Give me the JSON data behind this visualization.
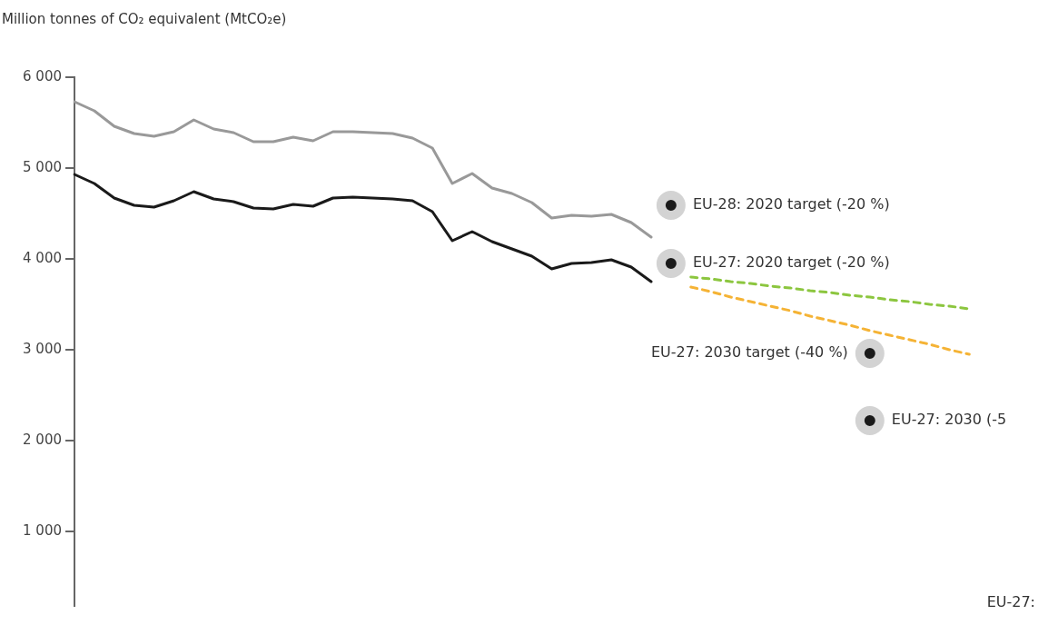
{
  "chart_data": {
    "type": "line",
    "ylabel": "Million tonnes of CO₂ equivalent (MtCO₂e)",
    "categories": [
      null,
      null,
      null,
      null,
      null,
      null,
      null,
      null,
      null,
      null,
      null,
      null,
      null,
      null,
      null,
      null,
      null,
      null,
      null,
      null,
      null,
      null,
      null,
      null,
      null,
      null,
      null,
      null,
      null,
      null,
      null,
      null,
      null,
      null,
      null,
      null,
      null,
      null,
      null,
      null,
      null,
      null,
      null,
      null,
      null,
      null,
      null,
      null,
      null
    ],
    "ylim": [
      180,
      6000
    ],
    "yticks": [
      {
        "value": 1000,
        "label": "1 000"
      },
      {
        "value": 2000,
        "label": "2 000"
      },
      {
        "value": 3000,
        "label": "3 000"
      },
      {
        "value": 4000,
        "label": "4 000"
      },
      {
        "value": 5000,
        "label": "5 000"
      },
      {
        "value": 6000,
        "label": "6 000"
      }
    ],
    "legend": false,
    "grid": false,
    "tick_labels": "y",
    "series": [
      {
        "color": "#999999",
        "values": [
          5730,
          5630,
          5460,
          5380,
          5350,
          5400,
          5530,
          5430,
          5390,
          5290,
          5290,
          5340,
          5300,
          5400,
          5400,
          5390,
          5380,
          5330,
          5220,
          4830,
          4940,
          4780,
          4720,
          4620,
          4450,
          4480,
          4470,
          4490,
          4400,
          4240,
          null,
          null,
          null,
          null,
          null,
          null,
          null,
          null,
          null,
          null,
          null,
          null,
          null,
          null,
          null,
          null,
          null,
          null,
          null
        ]
      },
      {
        "color": "#1a1a1a",
        "values": [
          4930,
          4830,
          4670,
          4590,
          4570,
          4640,
          4740,
          4660,
          4630,
          4560,
          4550,
          4600,
          4580,
          4670,
          4680,
          4670,
          4660,
          4640,
          4520,
          4200,
          4300,
          4190,
          4110,
          4030,
          3890,
          3950,
          3960,
          3990,
          3910,
          3750,
          null,
          null,
          null,
          null,
          null,
          null,
          null,
          null,
          null,
          null,
          null,
          null,
          null,
          null,
          null,
          null,
          null,
          null,
          null
        ]
      },
      {
        "color": "#8cc63f",
        "line_style": "dashed",
        "values": [
          null,
          null,
          null,
          null,
          null,
          null,
          null,
          null,
          null,
          null,
          null,
          null,
          null,
          null,
          null,
          null,
          null,
          null,
          null,
          null,
          null,
          null,
          null,
          null,
          null,
          null,
          null,
          null,
          null,
          null,
          null,
          3800,
          3780,
          3750,
          3730,
          3700,
          3680,
          3650,
          3630,
          3600,
          3580,
          3550,
          3530,
          3500,
          3480,
          3450,
          null,
          null,
          null
        ]
      },
      {
        "color": "#f5b335",
        "line_style": "dashed",
        "values": [
          null,
          null,
          null,
          null,
          null,
          null,
          null,
          null,
          null,
          null,
          null,
          null,
          null,
          null,
          null,
          null,
          null,
          null,
          null,
          null,
          null,
          null,
          null,
          null,
          null,
          null,
          null,
          null,
          null,
          null,
          null,
          3690,
          3640,
          3580,
          3530,
          3480,
          3430,
          3370,
          3320,
          3270,
          3210,
          3160,
          3110,
          3060,
          3000,
          2950,
          null,
          null,
          null
        ]
      },
      {
        "type": "scatter",
        "marker": "circle",
        "name": "EU-28: 2020 target (-20 %)",
        "color": "#1a1a1a",
        "values": [
          null,
          null,
          null,
          null,
          null,
          null,
          null,
          null,
          null,
          null,
          null,
          null,
          null,
          null,
          null,
          null,
          null,
          null,
          null,
          null,
          null,
          null,
          null,
          null,
          null,
          null,
          null,
          null,
          null,
          null,
          4590,
          null,
          null,
          null,
          null,
          null,
          null,
          null,
          null,
          null,
          null,
          null,
          null,
          null,
          null,
          null,
          null,
          null,
          null
        ]
      },
      {
        "type": "scatter",
        "marker": "circle",
        "name": "EU-27: 2020 target (-20 %)",
        "color": "#1a1a1a",
        "values": [
          null,
          null,
          null,
          null,
          null,
          null,
          null,
          null,
          null,
          null,
          null,
          null,
          null,
          null,
          null,
          null,
          null,
          null,
          null,
          null,
          null,
          null,
          null,
          null,
          null,
          null,
          null,
          null,
          null,
          null,
          3950,
          null,
          null,
          null,
          null,
          null,
          null,
          null,
          null,
          null,
          null,
          null,
          null,
          null,
          null,
          null,
          null,
          null,
          null
        ]
      },
      {
        "type": "scatter",
        "marker": "circle",
        "name": "EU-27: 2030 target (-40 %)",
        "color": "#1a1a1a",
        "values": [
          null,
          null,
          null,
          null,
          null,
          null,
          null,
          null,
          null,
          null,
          null,
          null,
          null,
          null,
          null,
          null,
          null,
          null,
          null,
          null,
          null,
          null,
          null,
          null,
          null,
          null,
          null,
          null,
          null,
          null,
          null,
          null,
          null,
          null,
          null,
          null,
          null,
          null,
          null,
          null,
          2960,
          null,
          null,
          null,
          null,
          null,
          null,
          null,
          null
        ]
      },
      {
        "type": "scatter",
        "marker": "circle",
        "name": "EU-27: 2030 (-5",
        "color": "#1a1a1a",
        "values": [
          null,
          null,
          null,
          null,
          null,
          null,
          null,
          null,
          null,
          null,
          null,
          null,
          null,
          null,
          null,
          null,
          null,
          null,
          null,
          null,
          null,
          null,
          null,
          null,
          null,
          null,
          null,
          null,
          null,
          null,
          null,
          null,
          null,
          null,
          null,
          null,
          null,
          null,
          null,
          null,
          2220,
          null,
          null,
          null,
          null,
          null,
          null,
          null,
          null
        ]
      }
    ],
    "annotations": [
      "EU-27:"
    ]
  }
}
